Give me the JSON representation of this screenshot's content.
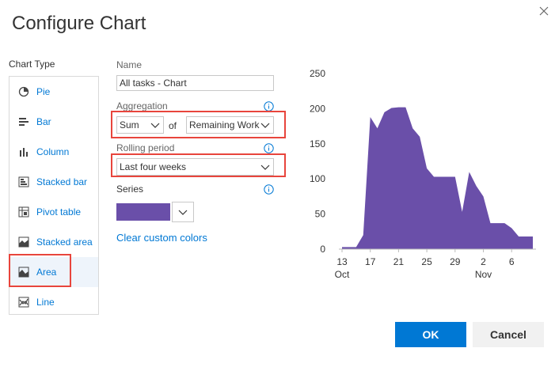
{
  "dialog": {
    "title": "Configure Chart",
    "close_icon": "close-icon"
  },
  "chart_type": {
    "label": "Chart Type",
    "items": [
      {
        "label": "Pie",
        "icon": "pie-icon"
      },
      {
        "label": "Bar",
        "icon": "bar-icon"
      },
      {
        "label": "Column",
        "icon": "column-icon"
      },
      {
        "label": "Stacked bar",
        "icon": "stacked-bar-icon"
      },
      {
        "label": "Pivot table",
        "icon": "pivot-table-icon"
      },
      {
        "label": "Stacked area",
        "icon": "stacked-area-icon"
      },
      {
        "label": "Area",
        "icon": "area-icon",
        "selected": true
      },
      {
        "label": "Line",
        "icon": "line-icon"
      }
    ]
  },
  "form": {
    "name_label": "Name",
    "name_value": "All tasks - Chart",
    "aggregation_label": "Aggregation",
    "aggregation_function": "Sum",
    "of_text": "of",
    "aggregation_field": "Remaining Work",
    "rolling_label": "Rolling period",
    "rolling_value": "Last four weeks",
    "series_label": "Series",
    "series_color": "#6a4fa9",
    "clear_colors": "Clear custom colors"
  },
  "buttons": {
    "ok": "OK",
    "cancel": "Cancel"
  },
  "colors": {
    "accent": "#0078d4",
    "highlight": "#e8453c",
    "series": "#6a4fa9"
  },
  "chart_data": {
    "type": "area",
    "ylim": [
      0,
      250
    ],
    "yticks": [
      "0",
      "50",
      "100",
      "150",
      "200",
      "250"
    ],
    "xticks": [
      {
        "day": 13,
        "label": "13",
        "sub": "Oct"
      },
      {
        "day": 17,
        "label": "17",
        "sub": ""
      },
      {
        "day": 21,
        "label": "21",
        "sub": ""
      },
      {
        "day": 25,
        "label": "25",
        "sub": ""
      },
      {
        "day": 29,
        "label": "29",
        "sub": ""
      },
      {
        "day": 33,
        "label": "2",
        "sub": "Nov"
      },
      {
        "day": 37,
        "label": "6",
        "sub": ""
      }
    ],
    "series": [
      {
        "x": [
          13,
          14,
          15,
          16,
          17,
          18,
          19,
          20,
          21,
          22,
          23,
          24,
          25,
          26,
          27,
          28,
          29,
          30,
          31,
          32,
          33,
          34,
          35,
          36,
          37,
          38,
          39,
          40
        ],
        "values": [
          3,
          3,
          3,
          20,
          188,
          172,
          195,
          201,
          202,
          202,
          172,
          160,
          115,
          103,
          103,
          103,
          103,
          53,
          110,
          90,
          75,
          37,
          37,
          37,
          30,
          18,
          18,
          18
        ]
      }
    ]
  }
}
